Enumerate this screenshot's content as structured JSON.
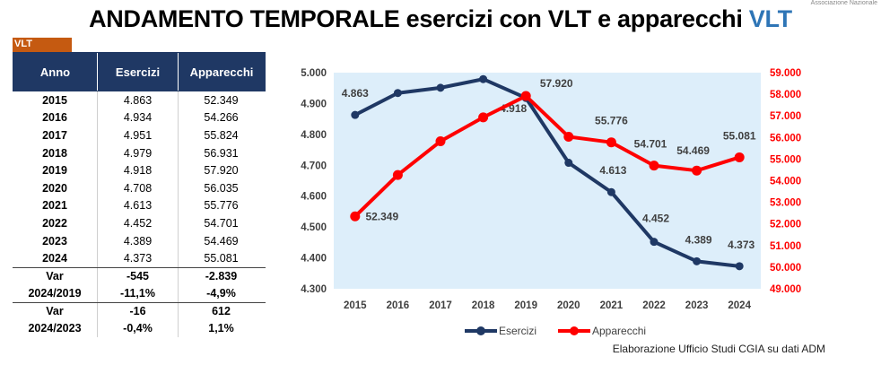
{
  "title": {
    "main": "ANDAMENTO TEMPORALE esercizi con VLT e apparecchi",
    "accent": "VLT"
  },
  "corner_text": "Associazione Nazionale",
  "tag": "VLT",
  "table": {
    "headers": [
      "Anno",
      "Esercizi",
      "Apparecchi"
    ],
    "rows": [
      [
        "2015",
        "4.863",
        "52.349"
      ],
      [
        "2016",
        "4.934",
        "54.266"
      ],
      [
        "2017",
        "4.951",
        "55.824"
      ],
      [
        "2018",
        "4.979",
        "56.931"
      ],
      [
        "2019",
        "4.918",
        "57.920"
      ],
      [
        "2020",
        "4.708",
        "56.035"
      ],
      [
        "2021",
        "4.613",
        "55.776"
      ],
      [
        "2022",
        "4.452",
        "54.701"
      ],
      [
        "2023",
        "4.389",
        "54.469"
      ],
      [
        "2024",
        "4.373",
        "55.081"
      ]
    ],
    "var1": {
      "label1": "Var",
      "label2": "2024/2019",
      "abs": [
        "-545",
        "-2.839"
      ],
      "pct": [
        "-11,1%",
        "-4,9%"
      ]
    },
    "var2": {
      "label1": "Var",
      "label2": "2024/2023",
      "abs": [
        "-16",
        "612"
      ],
      "pct": [
        "-0,4%",
        "1,1%"
      ]
    }
  },
  "chart_data": {
    "type": "line",
    "categories": [
      "2015",
      "2016",
      "2017",
      "2018",
      "2019",
      "2020",
      "2021",
      "2022",
      "2023",
      "2024"
    ],
    "series": [
      {
        "name": "Esercizi",
        "axis": "left",
        "color": "#1f3864",
        "values": [
          4863,
          4934,
          4951,
          4979,
          4918,
          4708,
          4613,
          4452,
          4389,
          4373
        ],
        "labels": {
          "0": "4.863",
          "4": "4.918",
          "6": "4.613",
          "7": "4.452",
          "8": "4.389",
          "9": "4.373"
        }
      },
      {
        "name": "Apparecchi",
        "axis": "right",
        "color": "#ff0000",
        "values": [
          52349,
          54266,
          55824,
          56931,
          57920,
          56035,
          55776,
          54701,
          54469,
          55081
        ],
        "labels": {
          "0": "52.349",
          "4": "57.920",
          "6": "55.776",
          "7": "54.701",
          "8": "54.469",
          "9": "55.081"
        }
      }
    ],
    "y_left": {
      "min": 4300,
      "max": 5000,
      "step": 100,
      "ticks": [
        "4.300",
        "4.400",
        "4.500",
        "4.600",
        "4.700",
        "4.800",
        "4.900",
        "5.000"
      ]
    },
    "y_right": {
      "min": 49000,
      "max": 59000,
      "step": 1000,
      "ticks": [
        "49.000",
        "50.000",
        "51.000",
        "52.000",
        "53.000",
        "54.000",
        "55.000",
        "56.000",
        "57.000",
        "58.000",
        "59.000"
      ]
    },
    "plot_background": "#ddeefa",
    "legend": "bottom"
  },
  "footer": "Elaborazione Ufficio Studi CGIA su dati ADM"
}
